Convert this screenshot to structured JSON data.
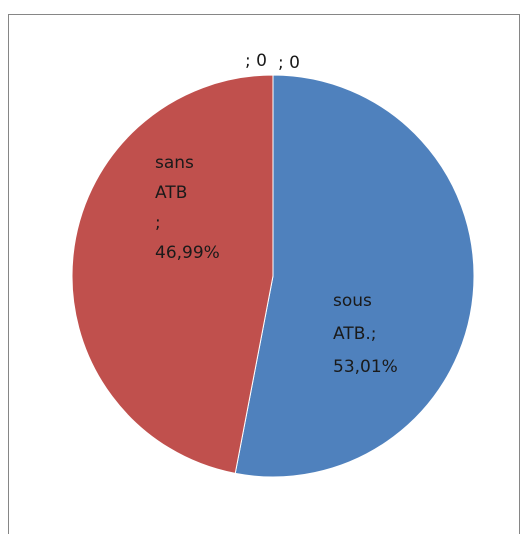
{
  "chart_data": {
    "type": "pie",
    "slices": [
      {
        "label": "sous ATB.",
        "value": 53.01,
        "display": "53,01%",
        "color": "#4f81bd"
      },
      {
        "label": "sans ATB",
        "value": 46.99,
        "display": "46,99%",
        "color": "#c0504d"
      },
      {
        "label": "",
        "value": 0,
        "display": "; 0",
        "color": "#9bbb59"
      },
      {
        "label": "",
        "value": 0,
        "display": "; 0",
        "color": "#8064a2"
      }
    ],
    "data_labels": [
      [
        "sous",
        "ATB.;",
        "53,01%"
      ],
      [
        "sans",
        "ATB",
        ";",
        "46,99%"
      ],
      [
        "; 0"
      ],
      [
        "; 0"
      ]
    ],
    "legend": "none"
  }
}
